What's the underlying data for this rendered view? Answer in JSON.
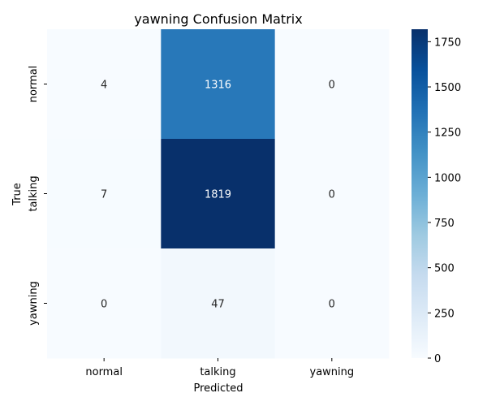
{
  "chart_data": {
    "type": "heatmap",
    "title": "yawning Confusion Matrix",
    "xlabel": "Predicted",
    "ylabel": "True",
    "x_categories": [
      "normal",
      "talking",
      "yawning"
    ],
    "y_categories": [
      "normal",
      "talking",
      "yawning"
    ],
    "matrix": [
      [
        4,
        1316,
        0
      ],
      [
        7,
        1819,
        0
      ],
      [
        0,
        47,
        0
      ]
    ],
    "colorbar": {
      "min": 0,
      "max": 1819,
      "ticks": [
        0,
        250,
        500,
        750,
        1000,
        1250,
        1500,
        1750
      ],
      "colormap": "Blues"
    },
    "grid": false
  }
}
